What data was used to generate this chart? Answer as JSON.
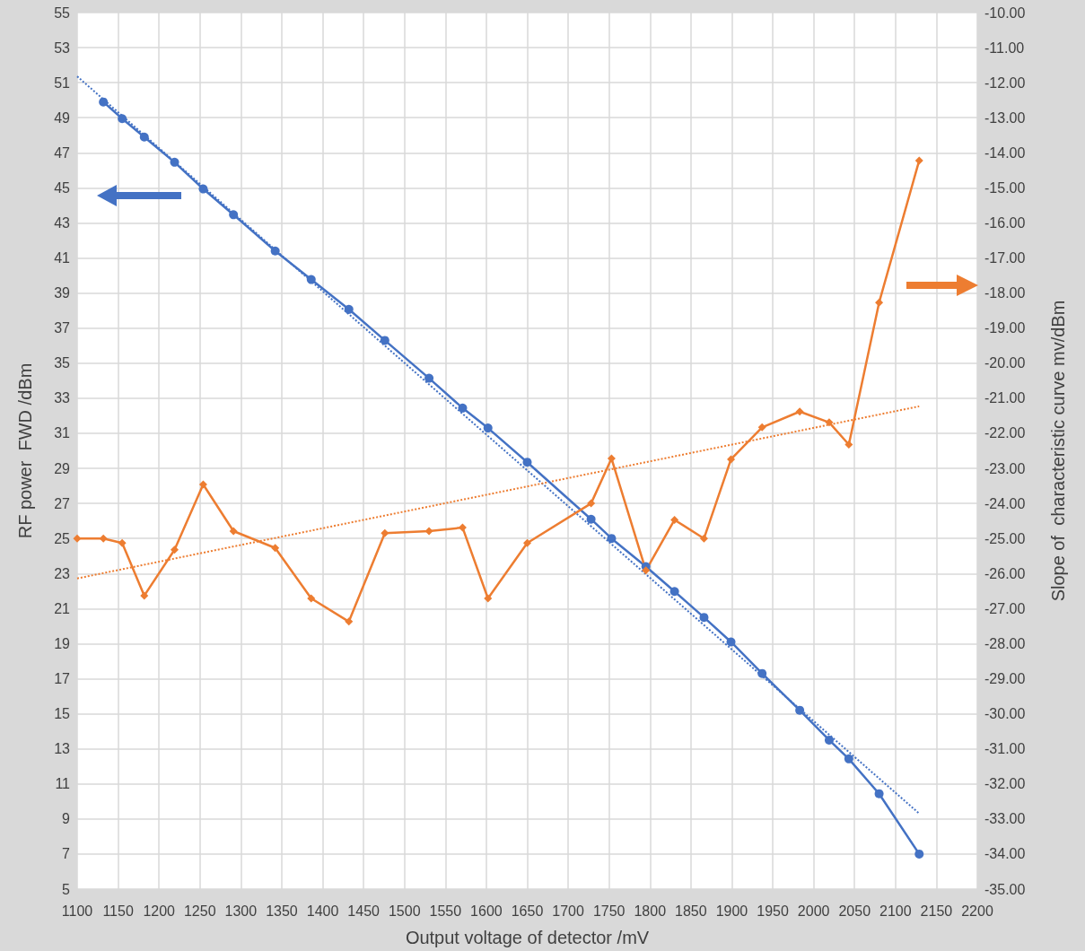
{
  "chart_data": {
    "type": "line",
    "xlabel": "Output voltage of detector /mV",
    "ylabel": "RF power  FWD /dBm",
    "y2label": "Slope of  characteristic curve mv/dBm",
    "xlim": [
      1100,
      2200
    ],
    "xticks": [
      1100,
      1150,
      1200,
      1250,
      1300,
      1350,
      1400,
      1450,
      1500,
      1550,
      1600,
      1650,
      1700,
      1750,
      1800,
      1850,
      1900,
      1950,
      2000,
      2050,
      2100,
      2150,
      2200
    ],
    "ylim": [
      5,
      55
    ],
    "yticks": [
      5,
      7,
      9,
      11,
      13,
      15,
      17,
      19,
      21,
      23,
      25,
      27,
      29,
      31,
      33,
      35,
      37,
      39,
      41,
      43,
      45,
      47,
      49,
      51,
      53,
      55
    ],
    "y2lim": [
      -35,
      -10
    ],
    "y2ticks": [
      {
        "value": -35,
        "label": "-35.00"
      },
      {
        "value": -34,
        "label": "-34.00"
      },
      {
        "value": -33,
        "label": "-33.00"
      },
      {
        "value": -32,
        "label": "-32.00"
      },
      {
        "value": -31,
        "label": "-31.00"
      },
      {
        "value": -30,
        "label": "-30.00"
      },
      {
        "value": -29,
        "label": "-29.00"
      },
      {
        "value": -28,
        "label": "-28.00"
      },
      {
        "value": -27,
        "label": "-27.00"
      },
      {
        "value": -26,
        "label": "-26.00"
      },
      {
        "value": -25,
        "label": "-25.00"
      },
      {
        "value": -24,
        "label": "-24.00"
      },
      {
        "value": -23,
        "label": "-23.00"
      },
      {
        "value": -22,
        "label": "-22.00"
      },
      {
        "value": -21,
        "label": "-21.00"
      },
      {
        "value": -20,
        "label": "-20.00"
      },
      {
        "value": -19,
        "label": "-19.00"
      },
      {
        "value": -18,
        "label": "-18.00"
      },
      {
        "value": -17,
        "label": "-17.00"
      },
      {
        "value": -16,
        "label": "-16.00"
      },
      {
        "value": -15,
        "label": "-15.00"
      },
      {
        "value": -14,
        "label": "-14.00"
      },
      {
        "value": -13,
        "label": "-13.00"
      },
      {
        "value": -12,
        "label": "-12.00"
      },
      {
        "value": -11,
        "label": "-11.00"
      },
      {
        "value": -10,
        "label": "-10.00"
      }
    ],
    "grid": true,
    "series": [
      {
        "color": "#4472c4",
        "marker": "circle",
        "line_style": "solid",
        "x": [
          1132,
          1155,
          1182,
          1219,
          1254,
          1291,
          1342,
          1386,
          1432,
          1476,
          1530,
          1571,
          1602,
          1650,
          1728,
          1753,
          1795,
          1830,
          1866,
          1899,
          1937,
          1983,
          2019,
          2043,
          2080,
          2129
        ],
        "values": [
          49.9,
          48.95,
          47.9,
          46.46,
          44.94,
          43.47,
          41.4,
          39.77,
          38.07,
          36.3,
          34.14,
          32.44,
          31.3,
          29.35,
          26.1,
          25.0,
          23.4,
          21.98,
          20.5,
          19.1,
          17.3,
          15.2,
          13.5,
          12.43,
          10.44,
          7.0
        ]
      },
      {
        "color": "#ed7d31",
        "marker": "diamond",
        "line_style": "solid",
        "axis": "y2",
        "x": [
          1100,
          1132,
          1155,
          1182,
          1219,
          1254,
          1291,
          1342,
          1386,
          1432,
          1476,
          1530,
          1571,
          1602,
          1650,
          1728,
          1753,
          1795,
          1830,
          1866,
          1899,
          1937,
          1983,
          2019,
          2043,
          2080,
          2129
        ],
        "values": [
          -25.0,
          -25.0,
          -25.13,
          -26.63,
          -25.32,
          -23.46,
          -24.79,
          -25.27,
          -26.71,
          -27.37,
          -24.85,
          -24.79,
          -24.69,
          -26.71,
          -25.13,
          -24.0,
          -22.72,
          -25.91,
          -24.47,
          -25.0,
          -22.74,
          -21.83,
          -21.38,
          -21.69,
          -22.32,
          -18.27,
          -14.22
        ]
      },
      {
        "color": "#4472c4",
        "marker": "none",
        "line_style": "dotted",
        "x": [
          1100,
          2129
        ],
        "values": [
          51.36,
          9.31
        ]
      },
      {
        "color": "#ed7d31",
        "marker": "none",
        "line_style": "dotted",
        "axis": "y2",
        "x": [
          1100,
          2129
        ],
        "values": [
          -26.14,
          -21.23
        ]
      }
    ]
  }
}
